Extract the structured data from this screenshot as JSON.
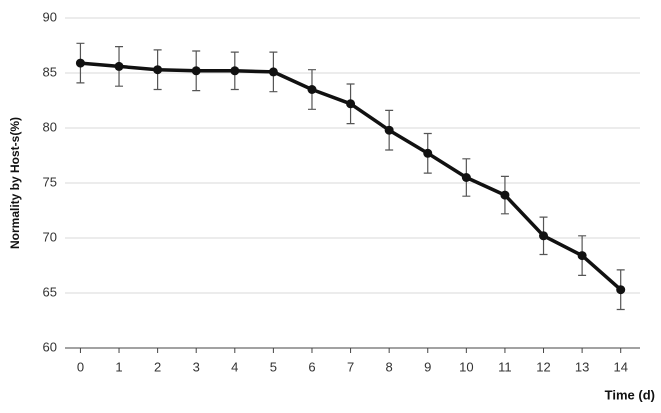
{
  "chart_data": {
    "type": "line",
    "x_label": "Time (d)",
    "y_label": "Normality by Host-s(%)",
    "x": [
      0,
      1,
      2,
      3,
      4,
      5,
      6,
      7,
      8,
      9,
      10,
      11,
      12,
      13,
      14
    ],
    "series": [
      {
        "color": "#111111",
        "values": [
          85.9,
          85.6,
          85.3,
          85.2,
          85.2,
          85.1,
          83.5,
          82.2,
          79.8,
          77.7,
          75.5,
          73.9,
          70.2,
          68.4,
          65.3
        ],
        "errors": [
          1.8,
          1.8,
          1.8,
          1.8,
          1.7,
          1.8,
          1.8,
          1.8,
          1.8,
          1.8,
          1.7,
          1.7,
          1.7,
          1.8,
          1.8
        ]
      }
    ],
    "xlim": [
      -0.4,
      14.5
    ],
    "xticks": [
      0,
      1,
      2,
      3,
      4,
      5,
      6,
      7,
      8,
      9,
      10,
      11,
      12,
      13,
      14
    ],
    "ylim": [
      60,
      90
    ],
    "yticks": [
      60,
      65,
      70,
      75,
      80,
      85,
      90
    ],
    "grid": true
  }
}
